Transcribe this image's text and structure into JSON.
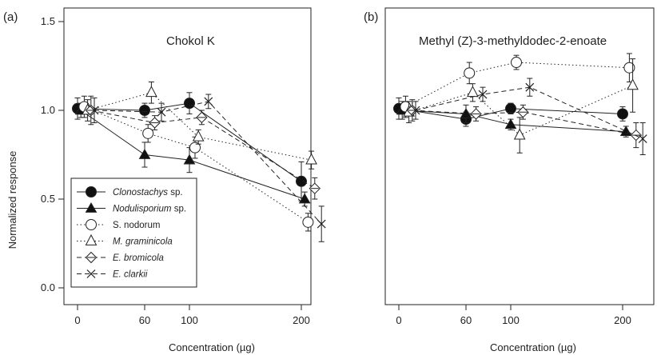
{
  "figure": {
    "ylabel": "Normalized response"
  },
  "chart_data": [
    {
      "type": "line",
      "panel_label": "(a)",
      "title": "Chokol K",
      "xlabel": "Concentration (µg)",
      "ylabel": "Normalized response",
      "x_ticks": [
        0,
        60,
        100,
        200
      ],
      "y_ticks": [
        "0.0",
        "0.5",
        "1.0",
        "1.5"
      ],
      "xlim": [
        -5,
        225
      ],
      "ylim": [
        -0.05,
        1.55
      ],
      "legend": "bottom-left",
      "series": [
        {
          "name": "Clonostachys",
          "name_suffix": " sp.",
          "italic": true,
          "marker": "filled-circle",
          "line": "solid",
          "x": [
            0,
            60,
            100,
            200
          ],
          "y": [
            1.01,
            1.0,
            1.04,
            0.6
          ],
          "err": [
            0.06,
            0.04,
            0.06,
            0.11
          ]
        },
        {
          "name": "Nodulisporium",
          "name_suffix": " sp.",
          "italic": true,
          "marker": "filled-triangle",
          "line": "solid",
          "x": [
            3,
            60,
            100,
            203
          ],
          "y": [
            1.0,
            0.75,
            0.72,
            0.5
          ],
          "err": [
            0.04,
            0.07,
            0.07,
            0.04
          ]
        },
        {
          "name": "S. nodorum",
          "name_suffix": "",
          "italic": false,
          "marker": "open-circle",
          "line": "dotted",
          "x": [
            6,
            63,
            105,
            206
          ],
          "y": [
            1.02,
            0.87,
            0.79,
            0.37
          ],
          "err": [
            0.06,
            0.05,
            0.06,
            0.05
          ]
        },
        {
          "name": "M. graminicola",
          "name_suffix": "",
          "italic": true,
          "marker": "open-triangle",
          "line": "dotted",
          "x": [
            9,
            66,
            108,
            209
          ],
          "y": [
            1.0,
            1.1,
            0.85,
            0.72
          ],
          "err": [
            0.06,
            0.06,
            0.04,
            0.05
          ]
        },
        {
          "name": "E. bromicola",
          "name_suffix": "",
          "italic": true,
          "marker": "open-diamond",
          "line": "dashed",
          "x": [
            12,
            69,
            111,
            212
          ],
          "y": [
            1.0,
            0.93,
            0.96,
            0.56
          ],
          "err": [
            0.08,
            0.04,
            0.04,
            0.06
          ]
        },
        {
          "name": "E. clarkii",
          "name_suffix": "",
          "italic": true,
          "marker": "cross",
          "line": "dashed",
          "x": [
            15,
            75,
            117,
            218
          ],
          "y": [
            1.0,
            0.99,
            1.05,
            0.36
          ],
          "err": [
            0.07,
            0.05,
            0.04,
            0.1
          ]
        }
      ]
    },
    {
      "type": "line",
      "panel_label": "(b)",
      "title": "Methyl (Z)-3-methyldodec-2-enoate",
      "xlabel": "Concentration (µg)",
      "ylabel": "",
      "x_ticks": [
        0,
        60,
        100,
        200
      ],
      "y_ticks": [],
      "xlim": [
        -5,
        225
      ],
      "ylim": [
        -0.05,
        1.55
      ],
      "legend": "none",
      "series": [
        {
          "name": "Clonostachys",
          "marker": "filled-circle",
          "line": "solid",
          "x": [
            0,
            60,
            100,
            200
          ],
          "y": [
            1.01,
            0.95,
            1.01,
            0.98
          ],
          "err": [
            0.06,
            0.04,
            0.03,
            0.04
          ]
        },
        {
          "name": "Nodulisporium",
          "marker": "filled-triangle",
          "line": "solid",
          "x": [
            3,
            60,
            100,
            203
          ],
          "y": [
            1.0,
            0.98,
            0.92,
            0.88
          ],
          "err": [
            0.05,
            0.05,
            0.03,
            0.03
          ]
        },
        {
          "name": "S. nodorum",
          "marker": "open-circle",
          "line": "dotted",
          "x": [
            6,
            63,
            105,
            206
          ],
          "y": [
            1.02,
            1.21,
            1.27,
            1.24
          ],
          "err": [
            0.06,
            0.06,
            0.04,
            0.08
          ]
        },
        {
          "name": "M. graminicola",
          "marker": "open-triangle",
          "line": "dotted",
          "x": [
            9,
            66,
            108,
            209
          ],
          "y": [
            0.99,
            1.1,
            0.86,
            1.14
          ],
          "err": [
            0.06,
            0.05,
            0.1,
            0.15
          ]
        },
        {
          "name": "E. bromicola",
          "marker": "open-diamond",
          "line": "dashed",
          "x": [
            12,
            69,
            111,
            212
          ],
          "y": [
            1.0,
            0.98,
            0.99,
            0.86
          ],
          "err": [
            0.06,
            0.04,
            0.04,
            0.07
          ]
        },
        {
          "name": "E. clarkii",
          "marker": "cross",
          "line": "dashed",
          "x": [
            15,
            75,
            117,
            218
          ],
          "y": [
            1.0,
            1.09,
            1.13,
            0.84
          ],
          "err": [
            0.05,
            0.04,
            0.05,
            0.09
          ]
        }
      ]
    }
  ]
}
